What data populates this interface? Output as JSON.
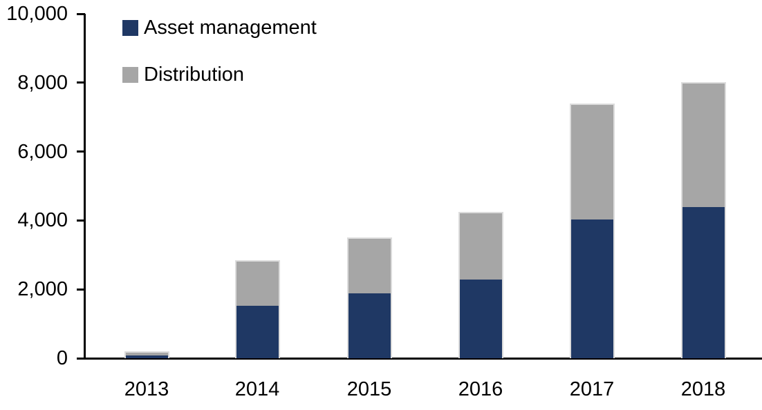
{
  "chart_data": {
    "type": "bar",
    "stacked": true,
    "title": "",
    "xlabel": "",
    "ylabel": "",
    "categories": [
      "2013",
      "2014",
      "2015",
      "2016",
      "2017",
      "2018"
    ],
    "series": [
      {
        "name": "Asset management",
        "color": "#1f3864",
        "values": [
          100,
          1550,
          1900,
          2300,
          4050,
          4400
        ]
      },
      {
        "name": "Distribution",
        "color": "#a6a6a6",
        "values": [
          100,
          1300,
          1600,
          1950,
          3350,
          3600
        ]
      }
    ],
    "stack_totals": [
      200,
      2850,
      3500,
      4250,
      7400,
      8000
    ],
    "ylim": [
      0,
      10000
    ],
    "ytick_interval": 2000,
    "ytick_labels": [
      "0",
      "2,000",
      "4,000",
      "6,000",
      "8,000",
      "10,000"
    ],
    "grid": false,
    "legend_position": "upper-left-inside",
    "axis_color": "#000000",
    "bar_outline_color": "#dcdcdc",
    "background": "#ffffff"
  }
}
